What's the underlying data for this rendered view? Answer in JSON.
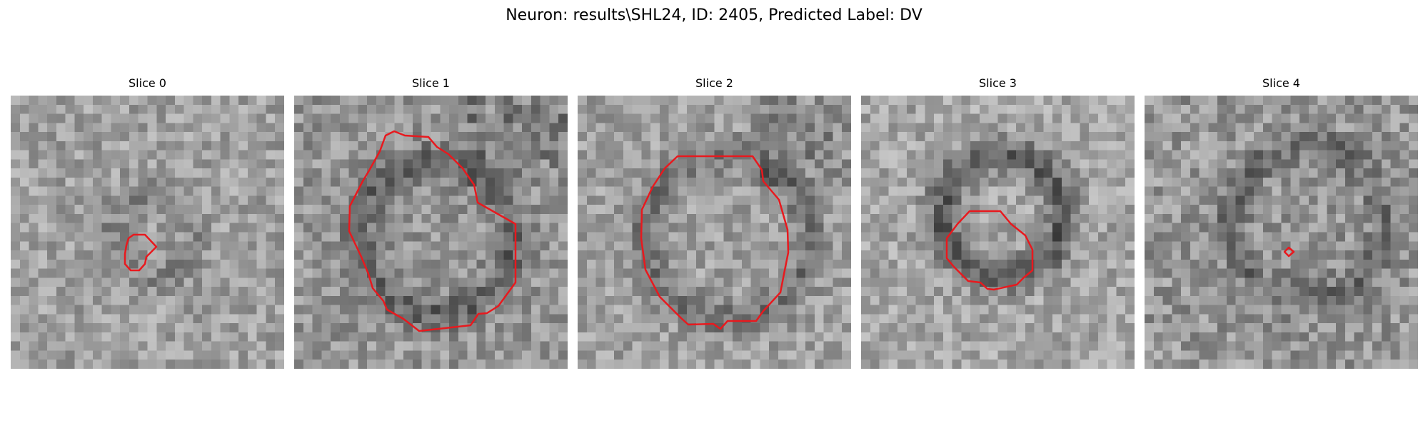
{
  "figure": {
    "title": "Neuron: results\\SHL24, ID: 2405, Predicted Label: DV",
    "contour_color": "#e8191e"
  },
  "panels": [
    {
      "title": "Slice 0"
    },
    {
      "title": "Slice 1"
    },
    {
      "title": "Slice 2"
    },
    {
      "title": "Slice 3"
    },
    {
      "title": "Slice 4"
    }
  ]
}
